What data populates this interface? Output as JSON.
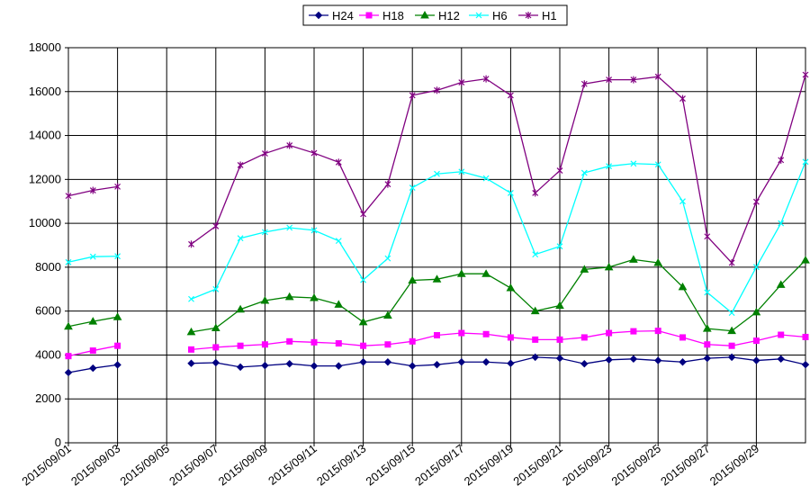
{
  "chart_data": {
    "type": "line",
    "title": "",
    "xlabel": "",
    "ylabel": "",
    "ylim": [
      0,
      18000
    ],
    "y_ticks": [
      0,
      2000,
      4000,
      6000,
      8000,
      10000,
      12000,
      14000,
      16000,
      18000
    ],
    "grid": true,
    "legend_position": "top-center",
    "x": [
      "2015/09/01",
      "2015/09/02",
      "2015/09/03",
      "2015/09/04",
      "2015/09/05",
      "2015/09/06",
      "2015/09/07",
      "2015/09/08",
      "2015/09/09",
      "2015/09/10",
      "2015/09/11",
      "2015/09/12",
      "2015/09/13",
      "2015/09/14",
      "2015/09/15",
      "2015/09/16",
      "2015/09/17",
      "2015/09/18",
      "2015/09/19",
      "2015/09/20",
      "2015/09/21",
      "2015/09/22",
      "2015/09/23",
      "2015/09/24",
      "2015/09/25",
      "2015/09/26",
      "2015/09/27",
      "2015/09/28",
      "2015/09/29",
      "2015/09/30",
      "2015/10/01"
    ],
    "x_tick_labels": [
      "2015/09/01",
      "2015/09/03",
      "2015/09/05",
      "2015/09/07",
      "2015/09/09",
      "2015/09/11",
      "2015/09/13",
      "2015/09/15",
      "2015/09/17",
      "2015/09/19",
      "2015/09/21",
      "2015/09/23",
      "2015/09/25",
      "2015/09/27",
      "2015/09/29"
    ],
    "series": [
      {
        "name": "H24",
        "color": "#000080",
        "marker": "diamond",
        "values": [
          3200,
          3400,
          3550,
          null,
          null,
          3620,
          3650,
          3450,
          3520,
          3600,
          3500,
          3500,
          3680,
          3680,
          3500,
          3560,
          3680,
          3680,
          3620,
          3900,
          3850,
          3600,
          3780,
          3820,
          3750,
          3680,
          3850,
          3900,
          3750,
          3820,
          3560
        ]
      },
      {
        "name": "H18",
        "color": "#FF00FF",
        "marker": "square",
        "values": [
          3950,
          4200,
          4420,
          null,
          null,
          4250,
          4350,
          4420,
          4480,
          4620,
          4580,
          4530,
          4420,
          4480,
          4620,
          4900,
          5000,
          4950,
          4800,
          4700,
          4700,
          4800,
          5000,
          5080,
          5100,
          4800,
          4480,
          4420,
          4650,
          4920,
          4820
        ]
      },
      {
        "name": "H12",
        "color": "#008000",
        "marker": "triangle",
        "values": [
          5300,
          5530,
          5730,
          null,
          null,
          5050,
          5230,
          6080,
          6480,
          6650,
          6600,
          6300,
          5500,
          5800,
          7400,
          7450,
          7700,
          7700,
          7050,
          6000,
          6250,
          7900,
          8000,
          8350,
          8200,
          7100,
          5200,
          5100,
          5950,
          7200,
          8320
        ]
      },
      {
        "name": "H6",
        "color": "#00FFFF",
        "marker": "x",
        "values": [
          8230,
          8480,
          8500,
          null,
          null,
          6550,
          7000,
          9320,
          9600,
          9800,
          9680,
          9200,
          7420,
          8400,
          11620,
          12250,
          12350,
          12050,
          11380,
          8580,
          8950,
          12300,
          12600,
          12720,
          12680,
          11000,
          6850,
          5920,
          8010,
          10000,
          12800
        ]
      },
      {
        "name": "H1",
        "color": "#800080",
        "marker": "star",
        "values": [
          11250,
          11500,
          11670,
          null,
          null,
          9050,
          9870,
          12650,
          13180,
          13550,
          13200,
          12780,
          10420,
          11780,
          15830,
          16060,
          16420,
          16580,
          15830,
          11380,
          12400,
          16350,
          16540,
          16540,
          16680,
          15680,
          9400,
          8200,
          10980,
          12880,
          16770
        ]
      }
    ]
  }
}
